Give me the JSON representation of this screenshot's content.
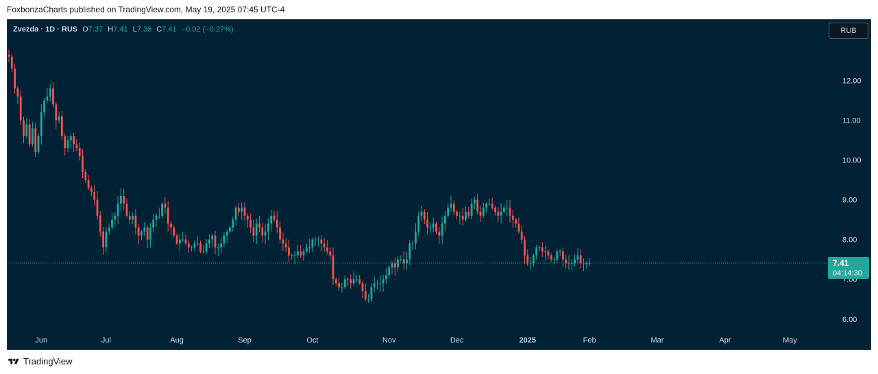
{
  "header": {
    "text": "FoxbonzaCharts published on TradingView.com, May 19, 2025 07:45 UTC-4"
  },
  "legend": {
    "symbol": "Zvezda · 1D · RUS",
    "open_label": "O",
    "open": "7.37",
    "high_label": "H",
    "high": "7.41",
    "low_label": "L",
    "low": "7.36",
    "close_label": "C",
    "close": "7.41",
    "change": "−0.02 (−0.27%)"
  },
  "currency": "RUB",
  "price_badge": {
    "price": "7.41",
    "countdown": "04:14:30"
  },
  "footer": {
    "brand": "TradingView",
    "logo_icon": "tradingview-logo-icon"
  },
  "colors": {
    "background": "#012235",
    "up": "#26a69a",
    "down": "#ef5350",
    "text": "#d1d4dc",
    "badge": "#26a69a"
  },
  "chart_data": {
    "type": "candlestick",
    "ylim": [
      5.6,
      12.75
    ],
    "y_ticks": [
      {
        "value": 6,
        "label": "6.00"
      },
      {
        "value": 7,
        "label": "7.00"
      },
      {
        "value": 8,
        "label": "8.00"
      },
      {
        "value": 9,
        "label": "9.00"
      },
      {
        "value": 10,
        "label": "10.00"
      },
      {
        "value": 11,
        "label": "11.00"
      },
      {
        "value": 12,
        "label": "12.00"
      }
    ],
    "x_ticks": [
      {
        "label": "Jun",
        "bar": 11
      },
      {
        "label": "Jul",
        "bar": 33
      },
      {
        "label": "Aug",
        "bar": 57
      },
      {
        "label": "Sep",
        "bar": 80
      },
      {
        "label": "Oct",
        "bar": 103
      },
      {
        "label": "Nov",
        "bar": 129
      },
      {
        "label": "Dec",
        "bar": 152
      },
      {
        "label": "2025",
        "bar": 176
      },
      {
        "label": "Feb",
        "bar": 197
      },
      {
        "label": "Mar",
        "bar": 220
      },
      {
        "label": "Apr",
        "bar": 243
      },
      {
        "label": "May",
        "bar": 265
      }
    ],
    "last_price": 7.41,
    "closes": [
      12.6,
      12.3,
      11.8,
      11.6,
      11.0,
      10.6,
      10.9,
      10.4,
      10.8,
      10.2,
      10.6,
      11.2,
      11.5,
      11.6,
      11.8,
      11.4,
      11.0,
      11.1,
      10.6,
      10.3,
      10.5,
      10.6,
      10.4,
      10.3,
      10.1,
      9.7,
      9.5,
      9.3,
      9.2,
      9.0,
      8.6,
      8.2,
      7.8,
      8.2,
      8.3,
      8.5,
      8.6,
      8.9,
      9.1,
      8.9,
      8.6,
      8.5,
      8.6,
      8.3,
      8.1,
      8.2,
      8.3,
      8.0,
      8.3,
      8.5,
      8.6,
      8.6,
      8.9,
      8.8,
      8.4,
      8.3,
      8.1,
      7.9,
      8.0,
      8.0,
      7.9,
      7.8,
      7.8,
      7.9,
      7.9,
      7.7,
      7.7,
      7.9,
      8.0,
      8.1,
      7.8,
      7.8,
      7.9,
      8.1,
      8.2,
      8.3,
      8.5,
      8.8,
      8.7,
      8.8,
      8.6,
      8.5,
      8.3,
      8.1,
      8.4,
      8.3,
      8.1,
      8.2,
      8.4,
      8.6,
      8.5,
      8.3,
      8.0,
      7.9,
      7.8,
      7.6,
      7.6,
      7.6,
      7.7,
      7.6,
      7.7,
      7.8,
      7.8,
      8.0,
      8.0,
      8.0,
      7.9,
      7.8,
      7.7,
      7.6,
      7.0,
      6.9,
      6.8,
      6.8,
      7.0,
      7.0,
      6.9,
      7.0,
      7.0,
      6.9,
      6.7,
      6.5,
      6.5,
      6.8,
      6.9,
      6.9,
      6.9,
      7.0,
      7.1,
      7.3,
      7.4,
      7.3,
      7.5,
      7.5,
      7.4,
      7.5,
      7.9,
      7.9,
      8.2,
      8.6,
      8.7,
      8.5,
      8.3,
      8.3,
      8.4,
      8.2,
      8.1,
      8.4,
      8.6,
      8.8,
      8.9,
      8.7,
      8.6,
      8.6,
      8.5,
      8.7,
      8.6,
      8.9,
      9.0,
      8.7,
      8.6,
      8.8,
      8.9,
      8.9,
      8.8,
      8.7,
      8.6,
      8.7,
      8.8,
      8.8,
      8.6,
      8.5,
      8.4,
      8.2,
      8.0,
      7.6,
      7.4,
      7.4,
      7.6,
      7.8,
      7.8,
      7.7,
      7.7,
      7.6,
      7.5,
      7.5,
      7.7,
      7.7,
      7.5,
      7.4,
      7.4,
      7.4,
      7.5,
      7.6,
      7.4,
      7.4,
      7.4,
      7.41
    ]
  }
}
